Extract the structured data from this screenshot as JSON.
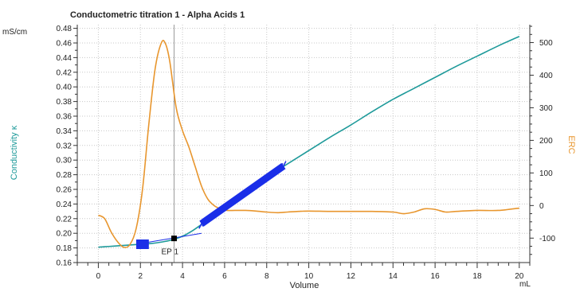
{
  "chart_data": {
    "type": "line",
    "title": "Conductometric titration 1 - Alpha Acids 1",
    "xlabel": "Volume",
    "x_unit": "mL",
    "ylabel_left": "Conductivity κ",
    "y_unit_left": "mS/cm",
    "ylabel_right": "ERC",
    "xlim": [
      -1,
      20.5
    ],
    "ylim_left": [
      0.16,
      0.485
    ],
    "ylim_right": [
      -175,
      555
    ],
    "x_ticks": [
      "0",
      "2",
      "4",
      "6",
      "8",
      "10",
      "12",
      "14",
      "16",
      "18",
      "20"
    ],
    "y_ticks_left": [
      "0.16",
      "0.18",
      "0.20",
      "0.22",
      "0.24",
      "0.26",
      "0.28",
      "0.30",
      "0.32",
      "0.34",
      "0.36",
      "0.38",
      "0.40",
      "0.42",
      "0.44",
      "0.46",
      "0.48"
    ],
    "y_ticks_right": [
      "-100",
      "0",
      "100",
      "200",
      "300",
      "400",
      "500"
    ],
    "grid": true,
    "colors": {
      "conductivity": "#1e9a9a",
      "erc": "#e8962e",
      "fit": "#1a2ee8",
      "endpoint": "#000000",
      "axis": "#333333",
      "grid": "#c8c8c8"
    },
    "series": [
      {
        "name": "Conductivity κ",
        "axis": "left",
        "x": [
          0,
          0.5,
          1.0,
          1.5,
          2.0,
          2.5,
          3.0,
          3.5,
          4.0,
          4.5,
          5.0,
          5.5,
          6.0,
          6.5,
          7.0,
          7.5,
          8.0,
          8.5,
          9.0,
          10,
          11,
          12,
          13,
          14,
          15,
          16,
          17,
          18,
          19,
          20
        ],
        "y": [
          0.181,
          0.182,
          0.183,
          0.184,
          0.185,
          0.186,
          0.188,
          0.191,
          0.196,
          0.204,
          0.214,
          0.223,
          0.234,
          0.245,
          0.256,
          0.266,
          0.276,
          0.286,
          0.295,
          0.313,
          0.331,
          0.348,
          0.366,
          0.383,
          0.398,
          0.413,
          0.428,
          0.442,
          0.456,
          0.469
        ]
      },
      {
        "name": "ERC",
        "axis": "right",
        "x": [
          0,
          0.3,
          0.6,
          0.9,
          1.2,
          1.5,
          1.8,
          2.1,
          2.4,
          2.7,
          3.0,
          3.2,
          3.4,
          3.7,
          4.0,
          4.3,
          4.6,
          4.9,
          5.2,
          5.5,
          5.8,
          6.1,
          6.5,
          7.0,
          7.5,
          8.0,
          8.5,
          9.0,
          9.5,
          10,
          11,
          12,
          13,
          14,
          14.5,
          15,
          15.5,
          16,
          16.5,
          17,
          18,
          19,
          20
        ],
        "y": [
          -30,
          -40,
          -80,
          -110,
          -128,
          -120,
          -70,
          50,
          250,
          420,
          500,
          495,
          440,
          300,
          230,
          180,
          120,
          60,
          20,
          0,
          -10,
          -15,
          -15,
          -15,
          -17,
          -20,
          -22,
          -20,
          -18,
          -17,
          -18,
          -18,
          -18,
          -20,
          -25,
          -20,
          -10,
          -12,
          -20,
          -18,
          -15,
          -15,
          -8
        ]
      }
    ],
    "fit_segments": [
      {
        "x": [
          1.8,
          2.4
        ],
        "y": [
          0.185,
          0.185
        ],
        "style": "thick-short"
      },
      {
        "x": [
          4.9,
          8.8
        ],
        "y": [
          0.213,
          0.292
        ],
        "style": "thick-long"
      }
    ],
    "thin_fit_line": {
      "x": [
        1.8,
        4.9
      ],
      "y": [
        0.185,
        0.2
      ]
    },
    "endpoint": {
      "label": "EP 1",
      "x": 3.6,
      "y": 0.193
    }
  }
}
